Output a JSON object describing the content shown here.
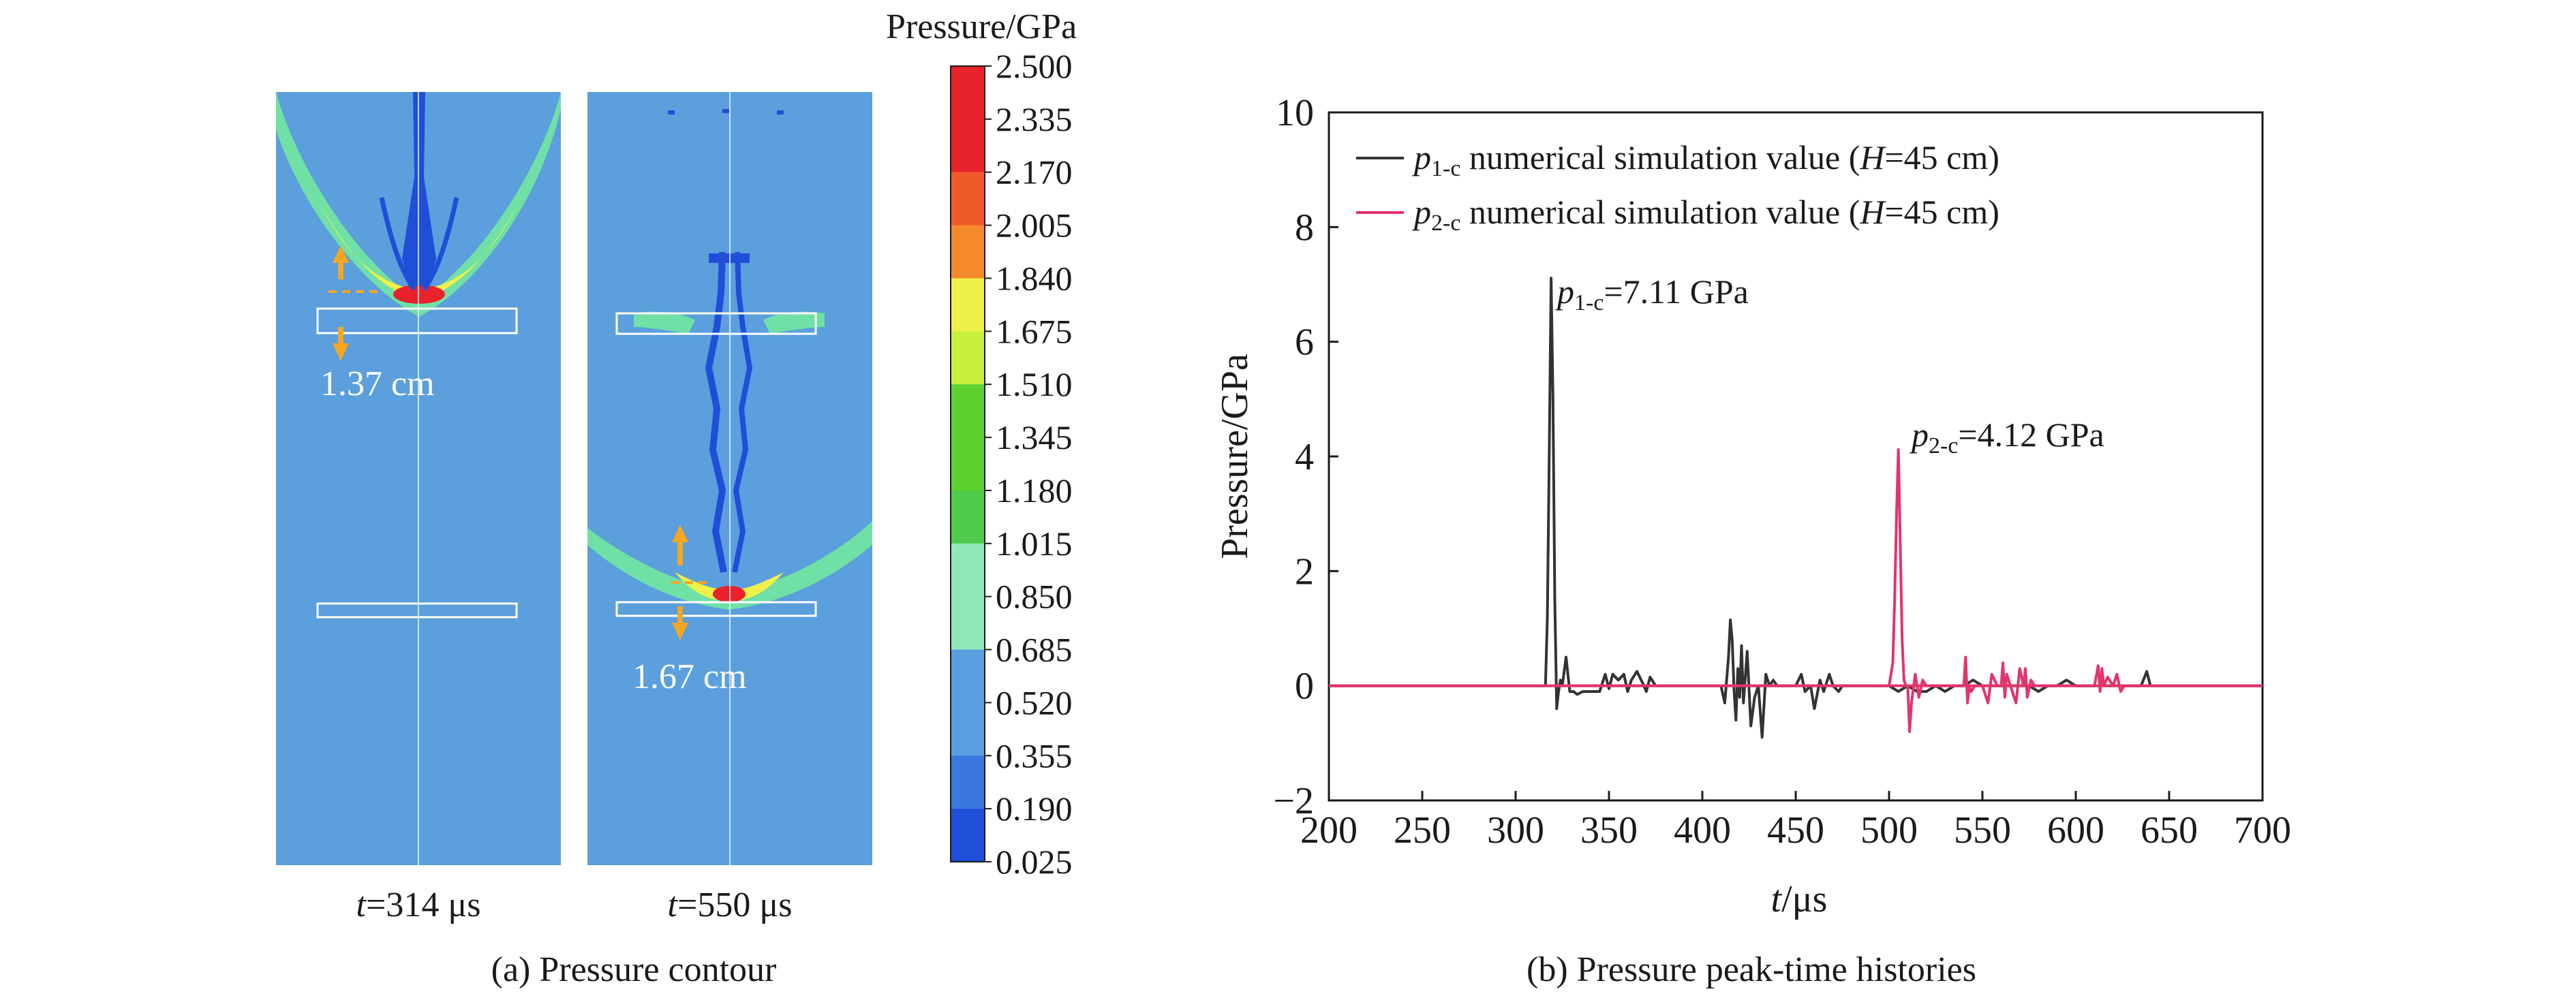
{
  "colors": {
    "background_field": "#5b9fdc",
    "arc_green": "#6fe0a6",
    "arc_yellow": "#f0f04a",
    "hot_red": "#e8232c",
    "dark_blue": "#1f4fd8",
    "annotation_orange": "#f5a623",
    "series_1": "#333333",
    "series_2": "#e2346b",
    "zero_line": "#e2346b"
  },
  "panel_a": {
    "caption": "(a) Pressure contour",
    "colorbar_title": "Pressure/GPa",
    "colorbar_values": [
      "2.500",
      "2.335",
      "2.170",
      "2.005",
      "1.840",
      "1.675",
      "1.510",
      "1.345",
      "1.180",
      "1.015",
      "0.850",
      "0.685",
      "0.520",
      "0.355",
      "0.190",
      "0.025"
    ],
    "colorbar_colors": [
      "#e8232c",
      "#e8232c",
      "#f05a2a",
      "#f58a2a",
      "#f0f04a",
      "#c9ef3e",
      "#5fd12e",
      "#5fd12e",
      "#4fca4a",
      "#8fe8b8",
      "#8fe8b8",
      "#5aa0e0",
      "#5aa0e0",
      "#3a78e0",
      "#1f4fd8"
    ],
    "contour_left": {
      "t_label_italic": "t",
      "t_label_rest": "=314 μs",
      "distance": "1.37 cm"
    },
    "contour_right": {
      "t_label_italic": "t",
      "t_label_rest": "=550 μs",
      "distance": "1.67 cm"
    }
  },
  "panel_b": {
    "caption": "(b) Pressure peak-time histories",
    "legend": [
      {
        "symbol": "p",
        "sub": "1-c",
        "text": " numerical simulation value (",
        "h": "H",
        "text2": "=45 cm)"
      },
      {
        "symbol": "p",
        "sub": "2-c",
        "text": " numerical simulation value (",
        "h": "H",
        "text2": "=45 cm)"
      }
    ],
    "annotations": [
      {
        "symbol": "p",
        "sub": "1-c",
        "text": "=7.11 GPa"
      },
      {
        "symbol": "p",
        "sub": "2-c",
        "text": "=4.12 GPa"
      }
    ],
    "xlabel_italic": "t",
    "xlabel_rest": "/μs",
    "ylabel": "Pressure/GPa"
  },
  "chart_data": {
    "type": "line",
    "xlim": [
      200,
      700
    ],
    "ylim": [
      -2,
      10
    ],
    "x_ticks": [
      200,
      250,
      300,
      350,
      400,
      450,
      500,
      550,
      600,
      650,
      700
    ],
    "y_ticks": [
      -2,
      0,
      2,
      4,
      6,
      8,
      10
    ],
    "grid": false,
    "legend_position": "top-left",
    "series": [
      {
        "name": "p1-c numerical simulation value (H=45 cm)",
        "color": "#333333",
        "x": [
          200,
          316,
          317,
          318,
          319,
          320,
          321,
          322,
          323,
          324,
          325,
          327,
          329,
          331,
          333,
          336,
          340,
          345,
          348,
          350,
          352,
          355,
          358,
          360,
          362,
          365,
          368,
          370,
          372,
          375,
          380,
          390,
          400,
          410,
          412,
          414,
          415,
          416,
          417,
          418,
          419,
          420,
          421,
          422,
          424,
          426,
          428,
          430,
          432,
          434,
          436,
          438,
          440,
          445,
          450,
          453,
          455,
          458,
          460,
          463,
          465,
          468,
          470,
          473,
          475,
          480,
          485,
          490,
          495,
          500,
          505,
          510,
          515,
          520,
          525,
          530,
          535,
          540,
          545,
          550,
          555,
          560,
          565,
          570,
          575,
          580,
          585,
          590,
          595,
          600,
          605,
          610,
          615,
          620,
          625,
          630,
          635,
          638,
          640,
          642,
          650,
          700
        ],
        "y": [
          0,
          0,
          1.2,
          4.0,
          7.11,
          5.0,
          1.5,
          -0.4,
          -0.1,
          0.1,
          0.0,
          0.5,
          -0.1,
          -0.1,
          -0.15,
          -0.1,
          -0.1,
          -0.1,
          0.2,
          -0.05,
          0.2,
          0.1,
          0.2,
          -0.1,
          0.1,
          0.25,
          0.05,
          -0.1,
          0.15,
          0.0,
          0.0,
          0.0,
          0.0,
          0.0,
          -0.3,
          0.5,
          1.15,
          0.8,
          -0.1,
          -0.6,
          0.3,
          -0.2,
          0.7,
          -0.3,
          0.6,
          -0.7,
          -0.2,
          0.0,
          -0.9,
          0.2,
          0.0,
          0.1,
          0.0,
          0.0,
          0.0,
          0.2,
          -0.1,
          0.0,
          -0.4,
          0.1,
          -0.1,
          0.2,
          0.0,
          -0.1,
          0.0,
          0.0,
          0.0,
          0.0,
          0.0,
          0.0,
          -0.1,
          0.0,
          -0.1,
          -0.1,
          0.0,
          -0.1,
          0.0,
          0.0,
          0.1,
          0.0,
          0.0,
          0.0,
          0.0,
          0.0,
          0.0,
          -0.1,
          0.0,
          0.0,
          0.1,
          0.0,
          0.0,
          0.0,
          0.0,
          0.0,
          0.0,
          0.0,
          0.0,
          0.25,
          0.0,
          0.0,
          0.0,
          0.0
        ]
      },
      {
        "name": "p2-c numerical simulation value (H=45 cm)",
        "color": "#e2346b",
        "x": [
          200,
          500,
          502,
          503,
          504,
          505,
          506,
          507,
          508,
          509,
          510,
          511,
          512,
          514,
          516,
          518,
          520,
          525,
          530,
          535,
          540,
          541,
          542,
          543,
          544,
          546,
          550,
          553,
          555,
          558,
          560,
          561,
          562,
          563,
          565,
          568,
          570,
          572,
          573,
          574,
          576,
          578,
          580,
          585,
          590,
          595,
          600,
          605,
          610,
          612,
          613,
          614,
          615,
          617,
          620,
          622,
          624,
          626,
          630,
          640,
          700
        ],
        "y": [
          0,
          0,
          0.4,
          1.5,
          3.0,
          4.12,
          2.5,
          0.8,
          0.1,
          0.0,
          0.0,
          -0.8,
          -0.3,
          0.2,
          -0.2,
          0.1,
          0.0,
          0.0,
          0.0,
          0.0,
          0.0,
          0.5,
          -0.3,
          0.0,
          -0.1,
          0.0,
          0.0,
          -0.3,
          0.2,
          0.0,
          0.0,
          0.4,
          -0.2,
          0.2,
          0.0,
          -0.3,
          0.3,
          0.0,
          0.3,
          -0.2,
          0.1,
          0.0,
          0.0,
          0.0,
          0.0,
          0.0,
          0.0,
          0.0,
          0.0,
          0.35,
          -0.1,
          0.3,
          0.0,
          0.15,
          0.0,
          0.2,
          -0.1,
          0.0,
          0.0,
          0.0,
          0.0
        ]
      }
    ]
  }
}
